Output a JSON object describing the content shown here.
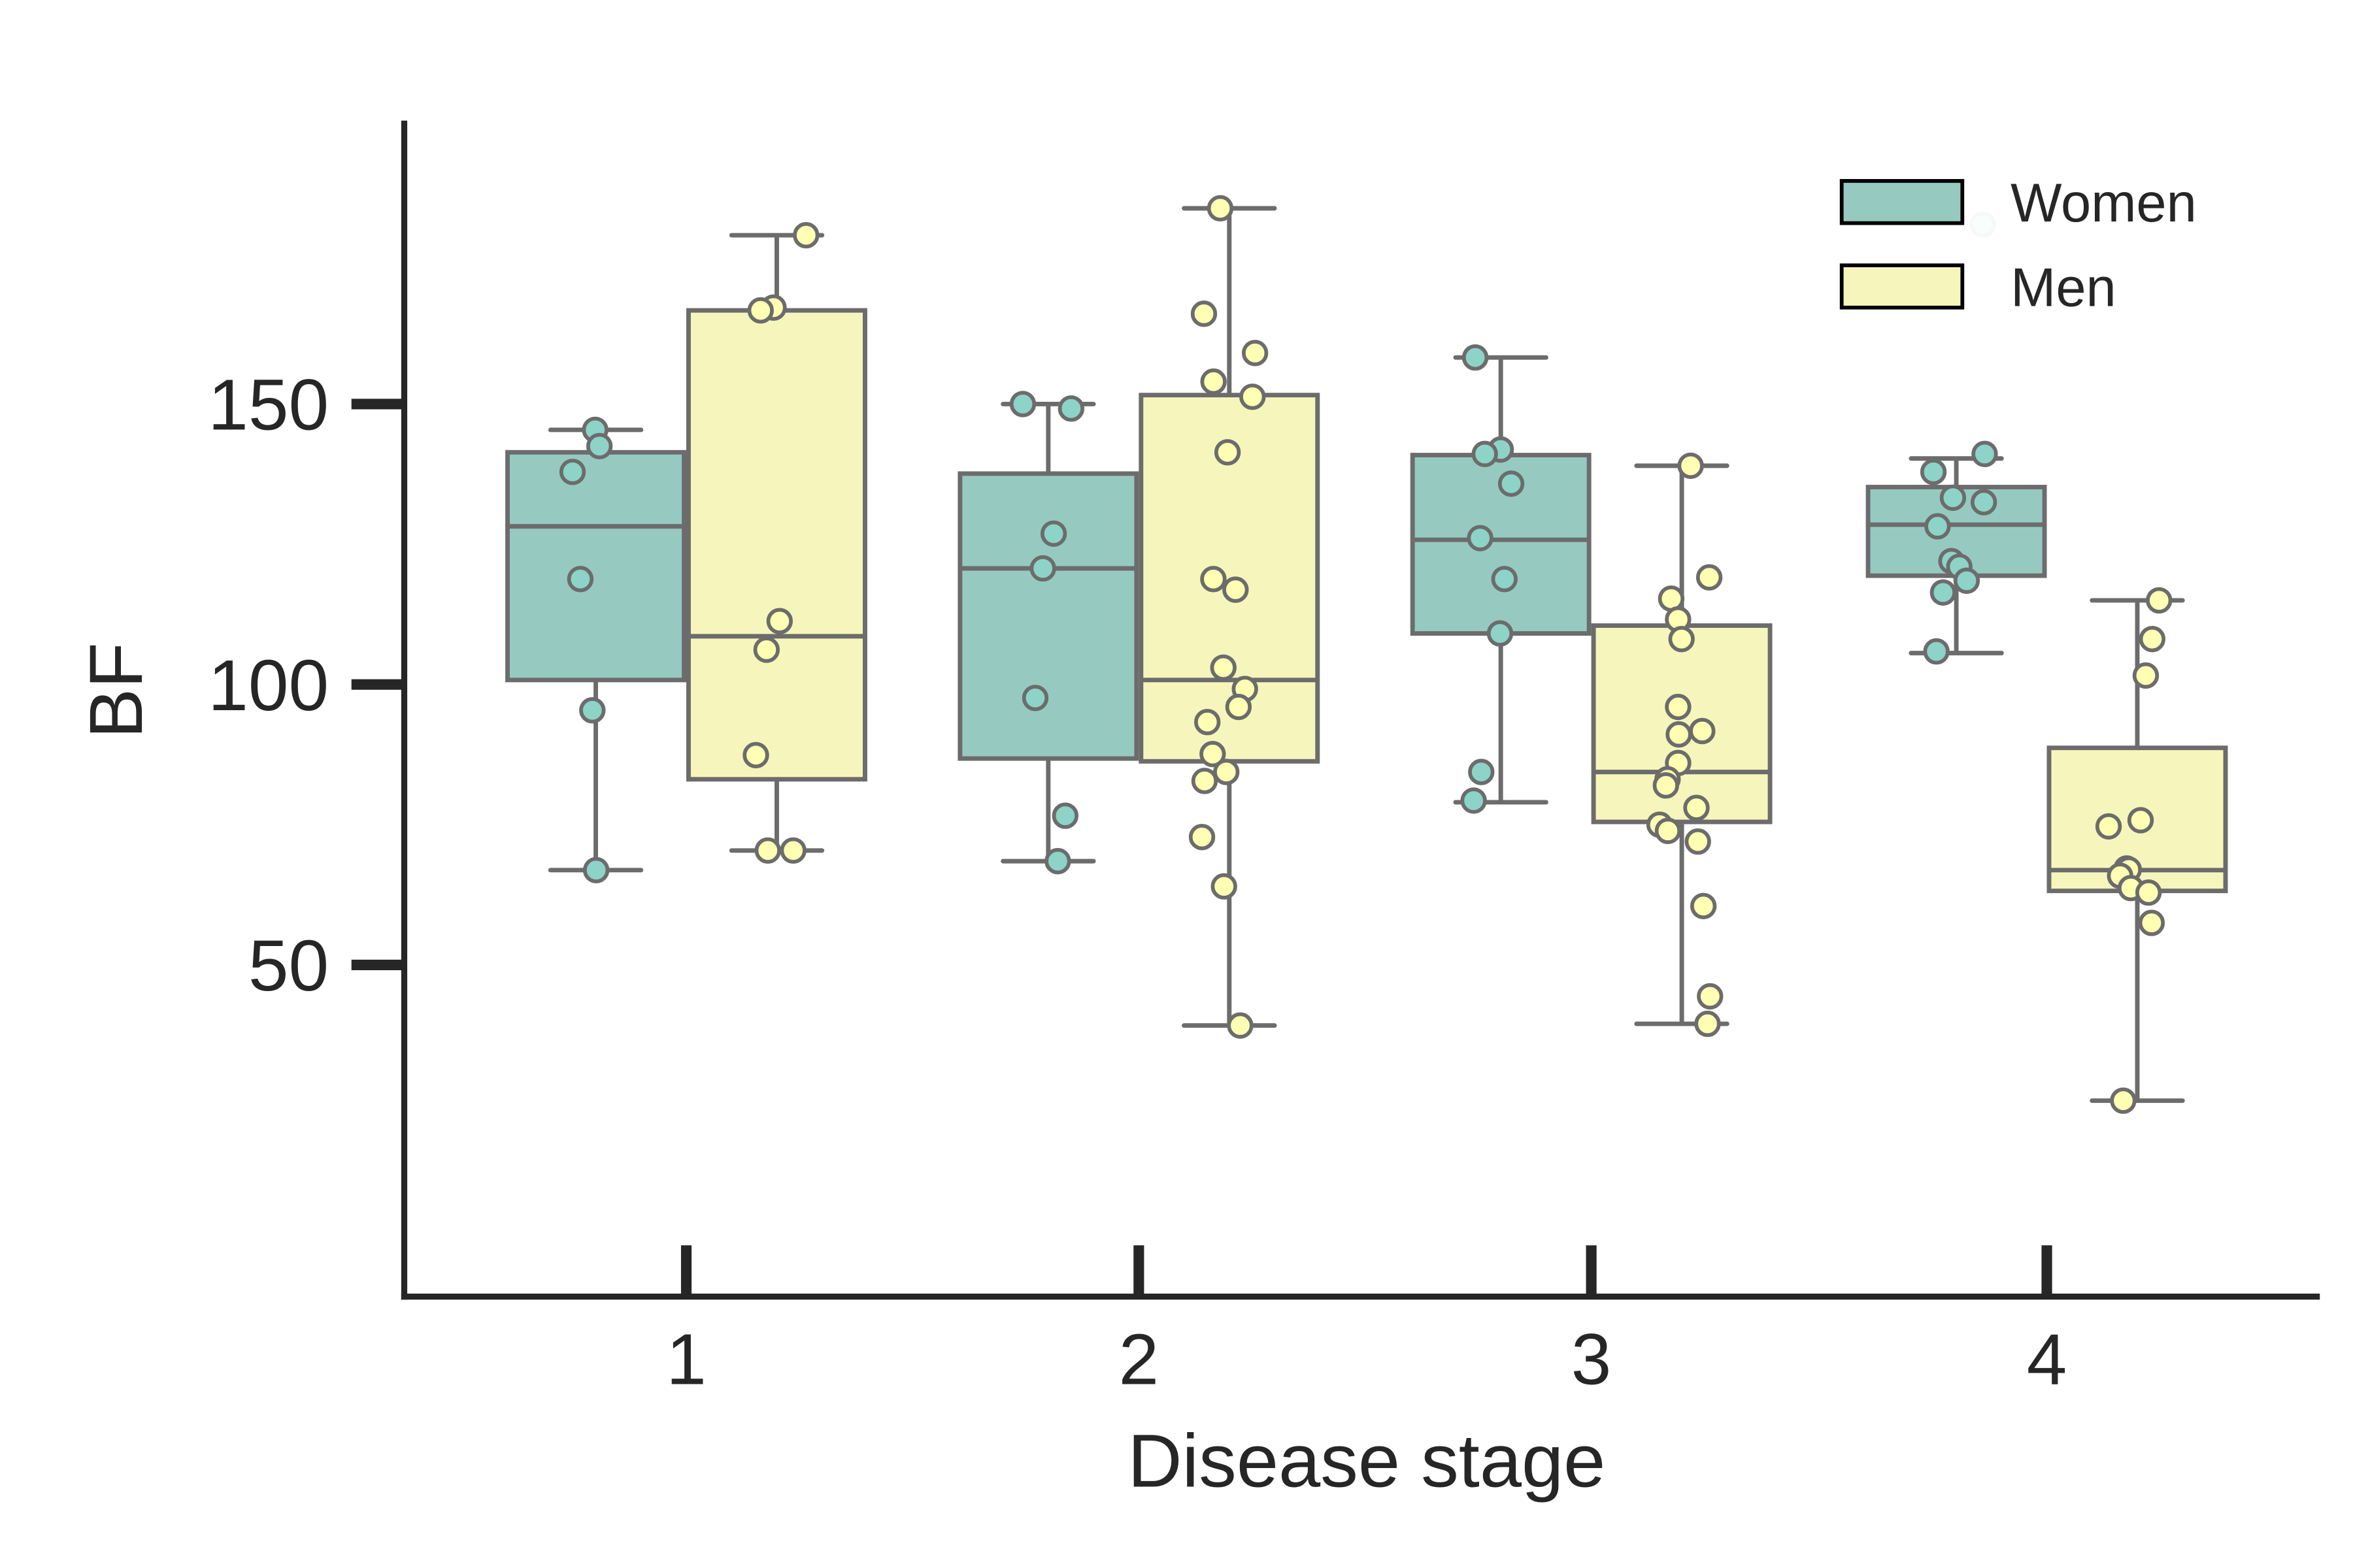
{
  "chart_data": {
    "type": "box",
    "title": "",
    "xlabel": "Disease stage",
    "ylabel": "BF",
    "categories": [
      "1",
      "2",
      "3",
      "4"
    ],
    "yticks": [
      50,
      100,
      150
    ],
    "ytick_labels": [
      "50",
      "100",
      "150"
    ],
    "ylim": [
      0,
      200
    ],
    "grid": false,
    "legend_position": "top-right",
    "series": [
      {
        "name": "Women",
        "color": "#96cac1",
        "point_color": "#8dd3c7",
        "boxes": [
          {
            "whislo": 66.9,
            "q1": 100.8,
            "med": 128.2,
            "q3": 141.4,
            "whishi": 145.4
          },
          {
            "whislo": 68.5,
            "q1": 86.8,
            "med": 120.7,
            "q3": 137.6,
            "whishi": 150.0
          },
          {
            "whislo": 79.0,
            "q1": 109.1,
            "med": 125.8,
            "q3": 140.9,
            "whishi": 158.3
          },
          {
            "whislo": 105.6,
            "q1": 119.4,
            "med": 128.5,
            "q3": 135.2,
            "whishi": 140.3
          }
        ],
        "points": [
          [
            145.4,
            142.5,
            137.9,
            118.8,
            95.4,
            66.9
          ],
          [
            150.0,
            149.2,
            126.9,
            120.7,
            97.6,
            76.6,
            68.5
          ],
          [
            158.3,
            141.9,
            141.1,
            135.8,
            126.1,
            118.8,
            109.1,
            84.4,
            79.3
          ],
          [
            182.0,
            141.1,
            137.9,
            133.3,
            132.5,
            128.2,
            122.0,
            121.0,
            118.5,
            116.4,
            105.9
          ]
        ]
      },
      {
        "name": "Men",
        "color": "#f6f6bc",
        "point_color": "#ffffb3",
        "boxes": [
          {
            "whislo": 70.4,
            "q1": 83.1,
            "med": 108.6,
            "q3": 166.7,
            "whishi": 180.1
          },
          {
            "whislo": 39.2,
            "q1": 86.3,
            "med": 100.8,
            "q3": 151.6,
            "whishi": 184.9
          },
          {
            "whislo": 39.5,
            "q1": 75.5,
            "med": 84.4,
            "q3": 110.5,
            "whishi": 139.0
          },
          {
            "whislo": 25.8,
            "q1": 63.2,
            "med": 66.9,
            "q3": 88.7,
            "whishi": 115.0
          }
        ],
        "points": [
          [
            180.1,
            167.2,
            166.7,
            111.3,
            106.2,
            87.4,
            70.4,
            70.4
          ],
          [
            184.9,
            166.1,
            159.1,
            154.0,
            151.3,
            141.4,
            118.8,
            116.9,
            103.0,
            99.2,
            96.0,
            93.3,
            87.6,
            84.4,
            82.8,
            72.8,
            64.0,
            39.2
          ],
          [
            139.0,
            119.1,
            115.3,
            111.6,
            108.1,
            96.0,
            91.7,
            91.1,
            86.0,
            83.1,
            82.0,
            78.0,
            75.0,
            73.9,
            72.0,
            60.5,
            44.4,
            39.5
          ],
          [
            115.0,
            108.1,
            101.6,
            75.8,
            74.7,
            67.2,
            67.0,
            65.9,
            63.7,
            62.9,
            57.5,
            25.8
          ]
        ]
      }
    ],
    "edge_color": "#6c6c6c"
  }
}
